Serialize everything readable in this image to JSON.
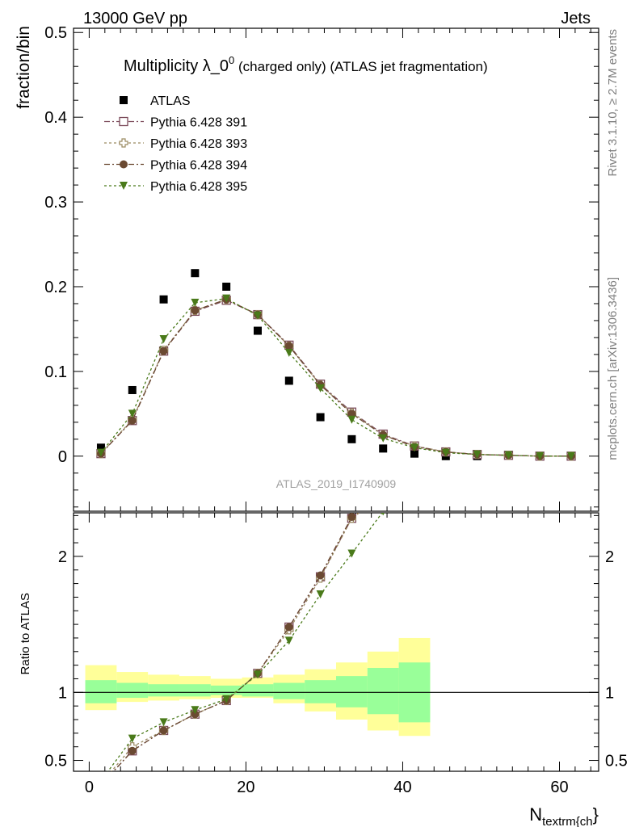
{
  "header": {
    "left": "13000 GeV pp",
    "right": "Jets"
  },
  "side_labels": {
    "rivet": "Rivet 3.1.10, ≥ 2.7M events",
    "mcplots": "mcplots.cern.ch [arXiv:1306.3436]"
  },
  "watermark": "ATLAS_2019_I1740909",
  "title": {
    "main": "Multiplicity λ_0",
    "sup": "0",
    "rest": " (charged only) (ATLAS jet fragmentation)"
  },
  "chart_data": [
    {
      "type": "scatter",
      "panel": "main",
      "ylabel": "fraction/bin",
      "xlim": [
        -2,
        65
      ],
      "ylim": [
        -0.065,
        0.505
      ],
      "yticks": [
        0,
        0.1,
        0.2,
        0.3,
        0.4,
        0.5
      ],
      "ytick_labels": [
        "0",
        "0.1",
        "0.2",
        "0.3",
        "0.4",
        "0.5"
      ],
      "x": [
        1.5,
        5.5,
        9.5,
        13.5,
        17.5,
        21.5,
        25.5,
        29.5,
        33.5,
        37.5,
        41.5,
        45.5,
        49.5,
        53.5,
        57.5,
        61.5
      ],
      "legend_position": "top-left",
      "series": [
        {
          "name": "ATLAS",
          "color": "#000000",
          "marker": "square",
          "values": [
            0.01,
            0.078,
            0.185,
            0.216,
            0.2,
            0.148,
            0.089,
            0.046,
            0.02,
            0.009,
            0.003,
            0.0,
            0.0,
            null,
            null,
            null
          ]
        },
        {
          "name": "Pythia 6.428 391",
          "color": "#7b4a5a",
          "marker": "open-square",
          "values": [
            0.003,
            0.042,
            0.124,
            0.171,
            0.184,
            0.167,
            0.131,
            0.085,
            0.052,
            0.026,
            0.012,
            0.005,
            0.002,
            0.001,
            0.0,
            0.0
          ]
        },
        {
          "name": "Pythia 6.428 393",
          "color": "#9a8a62",
          "marker": "open-cross",
          "values": [
            0.003,
            0.043,
            0.125,
            0.172,
            0.185,
            0.167,
            0.13,
            0.084,
            0.051,
            0.025,
            0.012,
            0.005,
            0.002,
            0.001,
            0.0,
            0.0
          ]
        },
        {
          "name": "Pythia 6.428 394",
          "color": "#6b4a32",
          "marker": "circle",
          "values": [
            0.003,
            0.042,
            0.124,
            0.172,
            0.185,
            0.167,
            0.13,
            0.084,
            0.05,
            0.025,
            0.011,
            0.005,
            0.002,
            0.001,
            0.0,
            0.0
          ]
        },
        {
          "name": "Pythia 6.428 395",
          "color": "#4a7a1a",
          "marker": "triangle-down",
          "values": [
            0.004,
            0.05,
            0.138,
            0.181,
            0.186,
            0.166,
            0.122,
            0.08,
            0.043,
            0.021,
            0.01,
            0.004,
            0.002,
            0.001,
            0.0,
            0.0
          ]
        }
      ]
    },
    {
      "type": "line",
      "panel": "ratio",
      "ylabel": "Ratio to ATLAS",
      "xlabel": "N",
      "xlabel_sub": "textrm{ch",
      "xlabel_tail": "}",
      "xlim": [
        -2,
        65
      ],
      "ylim": [
        0.42,
        2.32
      ],
      "yticks": [
        0.5,
        1,
        2
      ],
      "ytick_labels": [
        "0.5",
        "1",
        "2"
      ],
      "xticks": [
        0,
        20,
        40,
        60
      ],
      "xtick_labels": [
        "0",
        "20",
        "40",
        "60"
      ],
      "x": [
        1.5,
        5.5,
        9.5,
        13.5,
        17.5,
        21.5,
        25.5,
        29.5,
        33.5,
        37.5
      ],
      "bands": {
        "edges": [
          -0.5,
          3.5,
          7.5,
          11.5,
          15.5,
          19.5,
          23.5,
          27.5,
          31.5,
          35.5,
          39.5,
          43.5
        ],
        "yellow": [
          [
            0.87,
            1.2
          ],
          [
            0.93,
            1.15
          ],
          [
            0.94,
            1.13
          ],
          [
            0.95,
            1.12
          ],
          [
            0.96,
            1.1
          ],
          [
            0.96,
            1.11
          ],
          [
            0.92,
            1.13
          ],
          [
            0.86,
            1.17
          ],
          [
            0.8,
            1.22
          ],
          [
            0.72,
            1.3
          ],
          [
            0.68,
            1.4
          ]
        ],
        "green": [
          [
            0.92,
            1.09
          ],
          [
            0.96,
            1.07
          ],
          [
            0.97,
            1.06
          ],
          [
            0.97,
            1.06
          ],
          [
            0.98,
            1.05
          ],
          [
            0.97,
            1.06
          ],
          [
            0.95,
            1.07
          ],
          [
            0.92,
            1.09
          ],
          [
            0.89,
            1.12
          ],
          [
            0.84,
            1.18
          ],
          [
            0.78,
            1.22
          ]
        ]
      },
      "series": [
        {
          "name": "Pythia 6.428 391",
          "color": "#7b4a5a",
          "marker": "open-square",
          "values": [
            0.32,
            0.57,
            0.72,
            0.84,
            0.94,
            1.14,
            1.48,
            1.85,
            2.28,
            2.45
          ]
        },
        {
          "name": "Pythia 6.428 393",
          "color": "#9a8a62",
          "marker": "open-cross",
          "values": [
            0.33,
            0.6,
            0.72,
            0.84,
            0.94,
            1.14,
            1.46,
            1.84,
            2.28,
            2.45
          ]
        },
        {
          "name": "Pythia 6.428 394",
          "color": "#6b4a32",
          "marker": "circle",
          "values": [
            0.32,
            0.57,
            0.72,
            0.84,
            0.94,
            1.14,
            1.48,
            1.86,
            2.29,
            2.45
          ]
        },
        {
          "name": "Pythia 6.428 395",
          "color": "#4a7a1a",
          "marker": "triangle-down",
          "values": [
            0.35,
            0.66,
            0.78,
            0.87,
            0.95,
            1.13,
            1.38,
            1.72,
            2.02,
            2.33
          ]
        }
      ]
    }
  ]
}
